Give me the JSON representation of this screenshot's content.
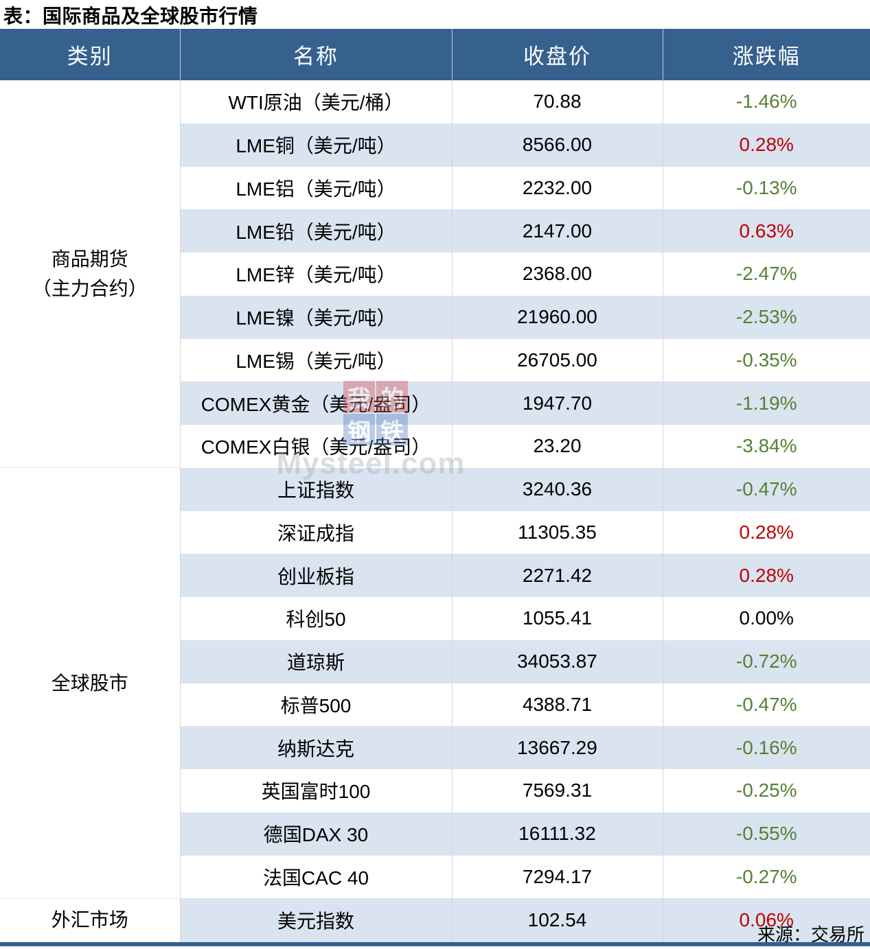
{
  "title": "表：国际商品及全球股市行情",
  "source": "来源：交易所",
  "watermark": {
    "logo_chars": [
      "我",
      "的",
      "钢",
      "铁"
    ],
    "text": "Mysteel.com"
  },
  "colors": {
    "header_bg": "#36618F",
    "stripe": "#DAE3F0",
    "up": "#C00000",
    "down": "#538135",
    "bottom_border": "#31608E"
  },
  "chart_data": {
    "type": "table",
    "title": "表：国际商品及全球股市行情",
    "source": "来源：交易所",
    "columns": [
      "类别",
      "名称",
      "收盘价",
      "涨跌幅"
    ],
    "groups": [
      {
        "category_lines": [
          "商品期货",
          "（主力合约）"
        ],
        "rows": [
          {
            "name": "WTI原油（美元/桶）",
            "close": "70.88",
            "change": "-1.46%",
            "dir": "down"
          },
          {
            "name": "LME铜（美元/吨）",
            "close": "8566.00",
            "change": "0.28%",
            "dir": "up"
          },
          {
            "name": "LME铝（美元/吨）",
            "close": "2232.00",
            "change": "-0.13%",
            "dir": "down"
          },
          {
            "name": "LME铅（美元/吨）",
            "close": "2147.00",
            "change": "0.63%",
            "dir": "up"
          },
          {
            "name": "LME锌（美元/吨）",
            "close": "2368.00",
            "change": "-2.47%",
            "dir": "down"
          },
          {
            "name": "LME镍（美元/吨）",
            "close": "21960.00",
            "change": "-2.53%",
            "dir": "down"
          },
          {
            "name": "LME锡（美元/吨）",
            "close": "26705.00",
            "change": "-0.35%",
            "dir": "down"
          },
          {
            "name": "COMEX黄金（美元/盎司）",
            "close": "1947.70",
            "change": "-1.19%",
            "dir": "down"
          },
          {
            "name": "COMEX白银（美元/盎司）",
            "close": "23.20",
            "change": "-3.84%",
            "dir": "down"
          }
        ]
      },
      {
        "category_lines": [
          "全球股市"
        ],
        "rows": [
          {
            "name": "上证指数",
            "close": "3240.36",
            "change": "-0.47%",
            "dir": "down"
          },
          {
            "name": "深证成指",
            "close": "11305.35",
            "change": "0.28%",
            "dir": "up"
          },
          {
            "name": "创业板指",
            "close": "2271.42",
            "change": "0.28%",
            "dir": "up"
          },
          {
            "name": "科创50",
            "close": "1055.41",
            "change": "0.00%",
            "dir": "flat"
          },
          {
            "name": "道琼斯",
            "close": "34053.87",
            "change": "-0.72%",
            "dir": "down"
          },
          {
            "name": "标普500",
            "close": "4388.71",
            "change": "-0.47%",
            "dir": "down"
          },
          {
            "name": "纳斯达克",
            "close": "13667.29",
            "change": "-0.16%",
            "dir": "down"
          },
          {
            "name": "英国富时100",
            "close": "7569.31",
            "change": "-0.25%",
            "dir": "down"
          },
          {
            "name": "德国DAX 30",
            "close": "16111.32",
            "change": "-0.55%",
            "dir": "down"
          },
          {
            "name": "法国CAC 40",
            "close": "7294.17",
            "change": "-0.27%",
            "dir": "down"
          }
        ]
      },
      {
        "category_lines": [
          "外汇市场"
        ],
        "rows": [
          {
            "name": "美元指数",
            "close": "102.54",
            "change": "0.06%",
            "dir": "up"
          }
        ]
      }
    ]
  }
}
